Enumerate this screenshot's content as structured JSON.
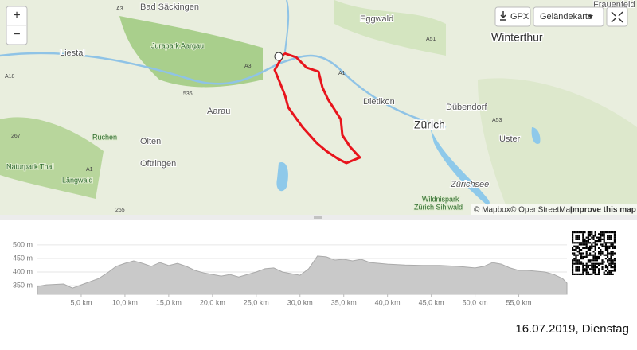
{
  "map": {
    "controls": {
      "zoom_in": "+",
      "zoom_out": "−",
      "gpx": "GPX",
      "layer": "Geländekarte"
    },
    "labels": [
      "Bad Säckingen",
      "Eggwald",
      "Liestal",
      "Jurapark Aargau",
      "Winterthur",
      "Frauenfeld",
      "Aarau",
      "Dietikon",
      "Dübendorf",
      "Zürich",
      "Uster",
      "Olten",
      "Ruchen",
      "Oftringen",
      "Naturpark Thal",
      "Längwald",
      "Zürichsee",
      "Wildnispark",
      "Zürich Sihlwald"
    ],
    "roads": [
      "A3",
      "A3",
      "A1",
      "A51",
      "A18",
      "536",
      "267",
      "A53",
      "A1",
      "255"
    ],
    "attribution": {
      "mapbox": "© Mapbox",
      "osm": "© OpenStreetMap",
      "improve": "Improve this map"
    }
  },
  "chart_data": {
    "type": "area",
    "color": "#c9c9c9",
    "x": [
      0,
      1,
      3,
      4,
      5,
      7,
      8,
      9,
      10,
      11,
      12,
      13,
      14,
      15,
      16,
      17,
      18,
      19,
      20,
      21,
      22,
      23,
      24,
      25,
      26,
      27,
      28,
      29,
      30,
      31,
      32,
      33,
      34,
      35,
      36,
      37,
      38,
      39,
      40,
      42,
      44,
      46,
      48,
      50,
      51,
      52,
      53,
      54,
      55,
      56,
      58,
      59,
      60,
      60.5
    ],
    "y": [
      347,
      353,
      356,
      341,
      353,
      376,
      397,
      421,
      432,
      441,
      432,
      421,
      435,
      424,
      432,
      421,
      406,
      397,
      391,
      385,
      391,
      382,
      391,
      400,
      412,
      415,
      400,
      394,
      388,
      412,
      459,
      456,
      444,
      447,
      441,
      447,
      435,
      432,
      429,
      426,
      424,
      424,
      421,
      415,
      421,
      435,
      429,
      415,
      406,
      406,
      400,
      391,
      376,
      359
    ],
    "xlim": [
      0,
      60.5
    ],
    "ylim": [
      318,
      532
    ],
    "xticks": [
      {
        "value": 5,
        "label": "5,0 km"
      },
      {
        "value": 10,
        "label": "10,0 km"
      },
      {
        "value": 15,
        "label": "15,0 km"
      },
      {
        "value": 20,
        "label": "20,0 km"
      },
      {
        "value": 25,
        "label": "25,0 km"
      },
      {
        "value": 30,
        "label": "30,0 km"
      },
      {
        "value": 35,
        "label": "35,0 km"
      },
      {
        "value": 40,
        "label": "40,0 km"
      },
      {
        "value": 45,
        "label": "45,0 km"
      },
      {
        "value": 50,
        "label": "50,0 km"
      },
      {
        "value": 55,
        "label": "55,0 km"
      }
    ],
    "yticks": [
      {
        "value": 350,
        "label": "350 m"
      },
      {
        "value": 400,
        "label": "400 m"
      },
      {
        "value": 450,
        "label": "450 m"
      },
      {
        "value": 500,
        "label": "500 m"
      }
    ],
    "grid": true
  },
  "footer": {
    "date": "16.07.2019, Dienstag"
  }
}
